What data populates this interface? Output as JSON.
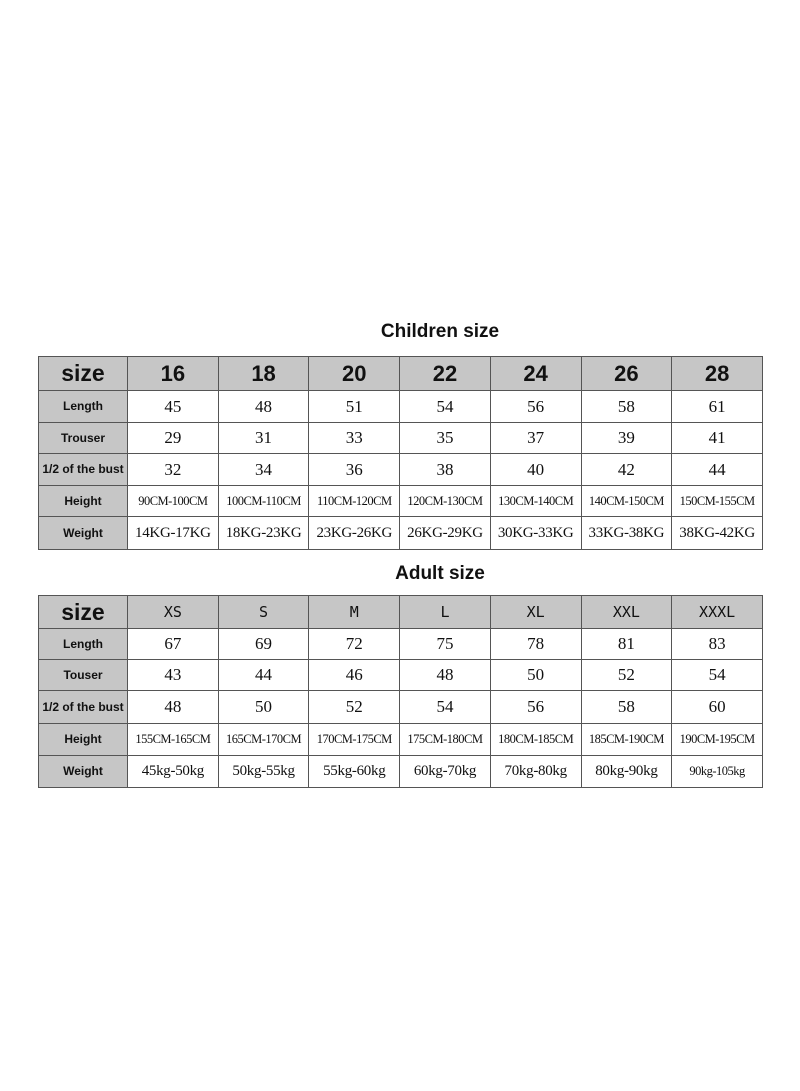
{
  "children": {
    "title": "Children size",
    "header": [
      "size",
      "16",
      "18",
      "20",
      "22",
      "24",
      "26",
      "28"
    ],
    "rows": [
      [
        "Length",
        "45",
        "48",
        "51",
        "54",
        "56",
        "58",
        "61"
      ],
      [
        "Trouser",
        "29",
        "31",
        "33",
        "35",
        "37",
        "39",
        "41"
      ],
      [
        "1/2 of the bust",
        "32",
        "34",
        "36",
        "38",
        "40",
        "42",
        "44"
      ],
      [
        "Height",
        "90CM-100CM",
        "100CM-110CM",
        "110CM-120CM",
        "120CM-130CM",
        "130CM-140CM",
        "140CM-150CM",
        "150CM-155CM"
      ],
      [
        "Weight",
        "14KG-17KG",
        "18KG-23KG",
        "23KG-26KG",
        "26KG-29KG",
        "30KG-33KG",
        "33KG-38KG",
        "38KG-42KG"
      ]
    ]
  },
  "adult": {
    "title": "Adult size",
    "header": [
      "size",
      "XS",
      "S",
      "M",
      "L",
      "XL",
      "XXL",
      "XXXL"
    ],
    "rows": [
      [
        "Length",
        "67",
        "69",
        "72",
        "75",
        "78",
        "81",
        "83"
      ],
      [
        "Touser",
        "43",
        "44",
        "46",
        "48",
        "50",
        "52",
        "54"
      ],
      [
        "1/2 of the bust",
        "48",
        "50",
        "52",
        "54",
        "56",
        "58",
        "60"
      ],
      [
        "Height",
        "155CM-165CM",
        "165CM-170CM",
        "170CM-175CM",
        "175CM-180CM",
        "180CM-185CM",
        "185CM-190CM",
        "190CM-195CM"
      ],
      [
        "Weight",
        "45kg-50kg",
        "50kg-55kg",
        "55kg-60kg",
        "60kg-70kg",
        "70kg-80kg",
        "80kg-90kg",
        "90kg-105kg"
      ]
    ]
  }
}
